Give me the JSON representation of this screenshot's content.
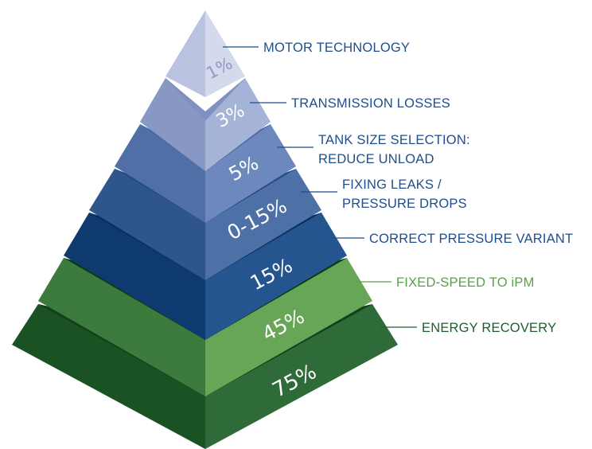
{
  "colors": {
    "blue_label": "#1f4e8c",
    "green_label": "#5aa046",
    "dark_green_label": "#1f5e2c"
  },
  "tiers": [
    {
      "percent": "1%",
      "label_lines": [
        "MOTOR TECHNOLOGY"
      ]
    },
    {
      "percent": "3%",
      "label_lines": [
        "TRANSMISSION LOSSES"
      ]
    },
    {
      "percent": "5%",
      "label_lines": [
        "TANK SIZE SELECTION:",
        "REDUCE UNLOAD"
      ]
    },
    {
      "percent": "0-15%",
      "label_lines": [
        "FIXING LEAKS /",
        "PRESSURE DROPS"
      ]
    },
    {
      "percent": "15%",
      "label_lines": [
        "CORRECT PRESSURE VARIANT"
      ]
    },
    {
      "percent": "45%",
      "label_lines": [
        "FIXED-SPEED TO iPM"
      ]
    },
    {
      "percent": "75%",
      "label_lines": [
        "ENERGY RECOVERY"
      ]
    }
  ]
}
